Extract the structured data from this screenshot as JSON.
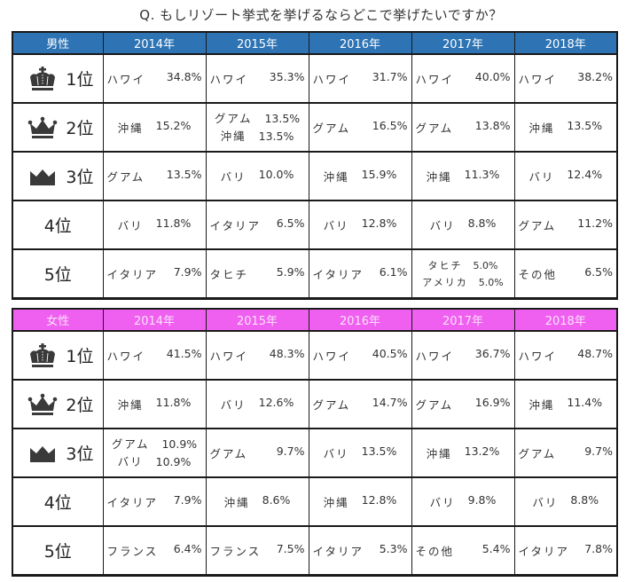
{
  "title": "Q. もしリゾート挙式を挙げるならどこで挙げたいですか？",
  "colors": {
    "male_header": "#2e74b5",
    "female_header": "#f060f0"
  },
  "ranks": [
    "1位",
    "2位",
    "3位",
    "4位",
    "5位"
  ],
  "icons": [
    "crown-gold-icon",
    "crown-silver-icon",
    "crown-bronze-icon"
  ],
  "male": {
    "header": [
      "男性",
      "2014年",
      "2015年",
      "2016年",
      "2017年",
      "2018年"
    ],
    "rows": [
      [
        [
          {
            "dest": "ハワイ",
            "pct": "34.8%"
          }
        ],
        [
          {
            "dest": "ハワイ",
            "pct": "35.3%"
          }
        ],
        [
          {
            "dest": "ハワイ",
            "pct": "31.7%"
          }
        ],
        [
          {
            "dest": "ハワイ",
            "pct": "40.0%"
          }
        ],
        [
          {
            "dest": "ハワイ",
            "pct": "38.2%"
          }
        ]
      ],
      [
        [
          {
            "dest": "沖縄",
            "pct": "15.2%"
          }
        ],
        [
          {
            "dest": "グアム",
            "pct": "13.5%"
          },
          {
            "dest": "沖縄",
            "pct": "13.5%"
          }
        ],
        [
          {
            "dest": "グアム",
            "pct": "16.5%"
          }
        ],
        [
          {
            "dest": "グアム",
            "pct": "13.8%"
          }
        ],
        [
          {
            "dest": "沖縄",
            "pct": "13.5%"
          }
        ]
      ],
      [
        [
          {
            "dest": "グアム",
            "pct": "13.5%"
          }
        ],
        [
          {
            "dest": "バリ",
            "pct": "10.0%"
          }
        ],
        [
          {
            "dest": "沖縄",
            "pct": "15.9%"
          }
        ],
        [
          {
            "dest": "沖縄",
            "pct": "11.3%"
          }
        ],
        [
          {
            "dest": "バリ",
            "pct": "12.4%"
          }
        ]
      ],
      [
        [
          {
            "dest": "バリ",
            "pct": "11.8%"
          }
        ],
        [
          {
            "dest": "イタリア",
            "pct": "6.5%"
          }
        ],
        [
          {
            "dest": "バリ",
            "pct": "12.8%"
          }
        ],
        [
          {
            "dest": "バリ",
            "pct": "8.8%"
          }
        ],
        [
          {
            "dest": "グアム",
            "pct": "11.2%"
          }
        ]
      ],
      [
        [
          {
            "dest": "イタリア",
            "pct": "7.9%"
          }
        ],
        [
          {
            "dest": "タヒチ",
            "pct": "5.9%"
          }
        ],
        [
          {
            "dest": "イタリア",
            "pct": "6.1%"
          }
        ],
        [
          {
            "dest": "タヒチ",
            "pct": "5.0%"
          },
          {
            "dest": "アメリカ",
            "pct": "5.0%"
          }
        ],
        [
          {
            "dest": "その他",
            "pct": "6.5%"
          }
        ]
      ]
    ]
  },
  "female": {
    "header": [
      "女性",
      "2014年",
      "2015年",
      "2016年",
      "2017年",
      "2018年"
    ],
    "rows": [
      [
        [
          {
            "dest": "ハワイ",
            "pct": "41.5%"
          }
        ],
        [
          {
            "dest": "ハワイ",
            "pct": "48.3%"
          }
        ],
        [
          {
            "dest": "ハワイ",
            "pct": "40.5%"
          }
        ],
        [
          {
            "dest": "ハワイ",
            "pct": "36.7%"
          }
        ],
        [
          {
            "dest": "ハワイ",
            "pct": "48.7%"
          }
        ]
      ],
      [
        [
          {
            "dest": "沖縄",
            "pct": "11.8%"
          }
        ],
        [
          {
            "dest": "バリ",
            "pct": "12.6%"
          }
        ],
        [
          {
            "dest": "グアム",
            "pct": "14.7%"
          }
        ],
        [
          {
            "dest": "グアム",
            "pct": "16.9%"
          }
        ],
        [
          {
            "dest": "沖縄",
            "pct": "11.4%"
          }
        ]
      ],
      [
        [
          {
            "dest": "グアム",
            "pct": "10.9%"
          },
          {
            "dest": "バリ",
            "pct": "10.9%"
          }
        ],
        [
          {
            "dest": "グアム",
            "pct": "9.7%"
          }
        ],
        [
          {
            "dest": "バリ",
            "pct": "13.5%"
          }
        ],
        [
          {
            "dest": "沖縄",
            "pct": "13.2%"
          }
        ],
        [
          {
            "dest": "グアム",
            "pct": "9.7%"
          }
        ]
      ],
      [
        [
          {
            "dest": "イタリア",
            "pct": "7.9%"
          }
        ],
        [
          {
            "dest": "沖縄",
            "pct": "8.6%"
          }
        ],
        [
          {
            "dest": "沖縄",
            "pct": "12.8%"
          }
        ],
        [
          {
            "dest": "バリ",
            "pct": "9.8%"
          }
        ],
        [
          {
            "dest": "バリ",
            "pct": "8.8%"
          }
        ]
      ],
      [
        [
          {
            "dest": "フランス",
            "pct": "6.4%"
          }
        ],
        [
          {
            "dest": "フランス",
            "pct": "7.5%"
          }
        ],
        [
          {
            "dest": "イタリア",
            "pct": "5.3%"
          }
        ],
        [
          {
            "dest": "その他",
            "pct": "5.4%"
          }
        ],
        [
          {
            "dest": "イタリア",
            "pct": "7.8%"
          }
        ]
      ]
    ]
  }
}
